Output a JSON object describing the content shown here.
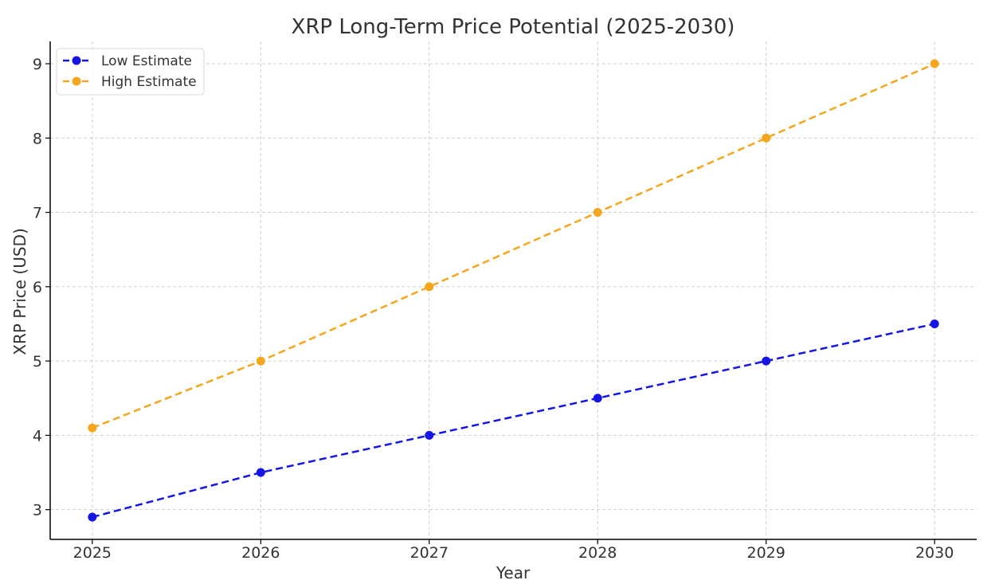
{
  "chart_data": {
    "type": "line",
    "title": "XRP Long-Term Price Potential (2025-2030)",
    "xlabel": "Year",
    "ylabel": "XRP Price (USD)",
    "x": [
      2025,
      2026,
      2027,
      2028,
      2029,
      2030
    ],
    "x_tick_labels": [
      "2025",
      "2026",
      "2027",
      "2028",
      "2029",
      "2030"
    ],
    "y_ticks": [
      3,
      4,
      5,
      6,
      7,
      8,
      9
    ],
    "y_tick_labels": [
      "3",
      "4",
      "5",
      "6",
      "7",
      "8",
      "9"
    ],
    "xlim": [
      2024.75,
      2030.25
    ],
    "ylim": [
      2.6,
      9.3
    ],
    "grid": true,
    "line_style": "dashed",
    "marker": "circle",
    "legend_position": "top-left",
    "series": [
      {
        "name": "Low Estimate",
        "color": "#1515e6",
        "values": [
          2.9,
          3.5,
          4.0,
          4.5,
          5.0,
          5.5
        ]
      },
      {
        "name": "High Estimate",
        "color": "#f5a51e",
        "values": [
          4.1,
          5.0,
          6.0,
          7.0,
          8.0,
          9.0
        ]
      }
    ]
  }
}
